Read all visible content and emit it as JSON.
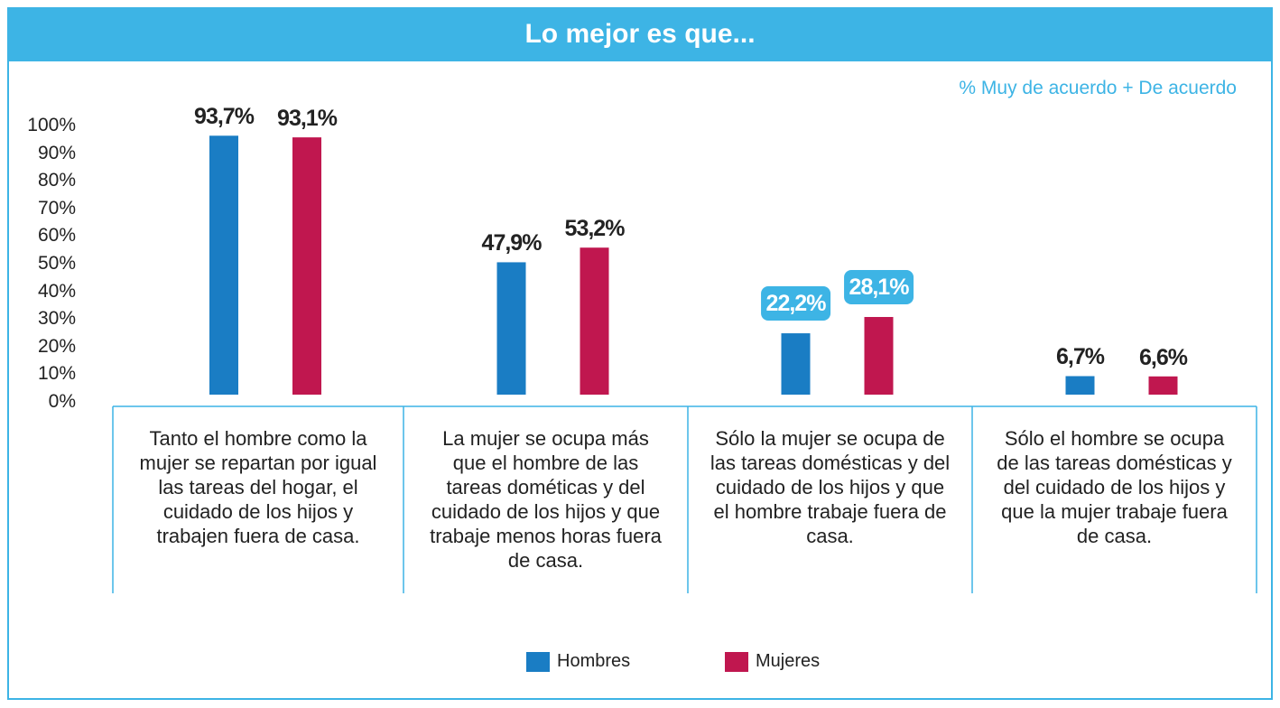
{
  "chart_data": {
    "type": "bar",
    "title": "Lo mejor es que...",
    "subtitle": "% Muy de acuerdo + De acuerdo",
    "categories": [
      "Tanto el hombre como la mujer se repartan por igual las tareas del hogar, el cuidado de los hijos y trabajen fuera de casa.",
      "La mujer se ocupa más que el hombre de las tareas dométicas y del cuidado de los hijos y que trabaje menos horas fuera de casa.",
      "Sólo la mujer se ocupa de las tareas domésticas y del cuidado de los hijos y que el hombre trabaje fuera de casa.",
      "Sólo el hombre se ocupa de las tareas domésticas y del cuidado de los hijos y que la mujer trabaje fuera de casa."
    ],
    "series": [
      {
        "name": "Hombres",
        "color": "#1a7dc4",
        "values": [
          93.7,
          47.9,
          22.2,
          6.7
        ],
        "value_labels": [
          "93,7%",
          "47,9%",
          "22,2%",
          "6,7%"
        ]
      },
      {
        "name": "Mujeres",
        "color": "#c0174f",
        "values": [
          93.1,
          53.2,
          28.1,
          6.6
        ],
        "value_labels": [
          "93,1%",
          "53,2%",
          "28,1%",
          "6,6%"
        ]
      }
    ],
    "ylim": [
      0,
      100
    ],
    "yticks": [
      {
        "value": 0,
        "label": "0%"
      },
      {
        "value": 10,
        "label": "10%"
      },
      {
        "value": 20,
        "label": "20%"
      },
      {
        "value": 30,
        "label": "30%"
      },
      {
        "value": 40,
        "label": "40%"
      },
      {
        "value": 50,
        "label": "50%"
      },
      {
        "value": 60,
        "label": "60%"
      },
      {
        "value": 70,
        "label": "70%"
      },
      {
        "value": 80,
        "label": "80%"
      },
      {
        "value": 90,
        "label": "90%"
      },
      {
        "value": 100,
        "label": "100%"
      }
    ],
    "grid": false
  }
}
